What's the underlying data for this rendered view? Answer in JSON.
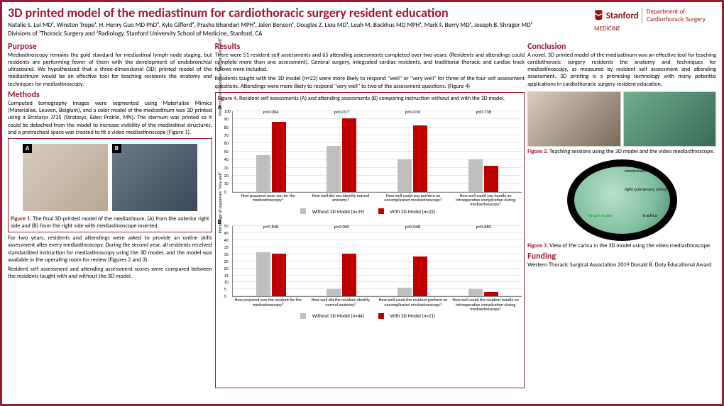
{
  "title": "3D printed model of the mediastinum for cardiothoracic surgery resident education",
  "authors": "Natalie S. Lui MD¹, Winston Trope¹, H. Henry Guo MD PhD², Kyle Gifford², Prasha Bhandari MPH¹, Jalen Benson¹,\nDouglas Z. Liou MD¹, Leah M. Backhus MD MPH¹, Mark F. Berry MD¹, Joseph B. Shrager MD¹",
  "affil": "Divisions of ¹Thoracic Surgery and ²Radiology, Stanford University School of Medicine, Stanford, CA",
  "logo": {
    "top": "Stanford",
    "mid": "MEDICINE",
    "dept": "Department of\nCardiothoracic Surgery"
  },
  "purpose": {
    "title": "Purpose",
    "text": "Mediastinoscopy remains the gold standard for mediastinal lymph node staging, but residents are performing fewer of them with the development of endobronchial ultrasound. We hypothesized that a three-dimensional (3D) printed model of the mediastinum would be an effective tool for teaching residents the anatomy and techniques for mediastinoscopy."
  },
  "methods": {
    "title": "Methods",
    "text1": "Computed tomography images were segmented using Materialise Mimics (Materialise, Leuven, Belgium), and a color model of the mediastinum was 3D printed using a Stratasys J735 (Stratasys, Eden Prairie, MN). The sternum was printed so it could be detached from the model to increase visibility of the mediastinal structures, and a pretracheal space was created to fit a video mediastinoscope (Figure 1).",
    "text2": "For two years, residents and attendings were asked to provide an online skills assessment after every mediastinoscopy. During the second year, all residents received standardized instruction for mediastinoscopy using the 3D model, and the model was available in the operating room for review (Figures 2 and 3).",
    "text3": "Resident self assessment and attending assessment scores were compared between the residents taught with and without the 3D model."
  },
  "fig1": {
    "label": "Figure 1.",
    "cap": "The final 3D-printed model of the mediastinum, (A) from the anterior right side and (B) from the right side with mediastinoscope inserted.",
    "a": "A",
    "b": "B"
  },
  "results": {
    "title": "Results",
    "text1": "There were 51 resident self assessments and 65 attending assessments completed over two years. (Residents and attendings could complete more than one assessment). General surgery, integrated cardiac residents, and traditional thoracic and cardiac track fellows were included.",
    "text2": "Residents taught with the 3D model (n=22) were more likely to respond \"well\" or \"very well\" for three of the four self assessment questions. Attendings were more likely to respond \"very well\" to two of the assessment questions. (Figure 4)"
  },
  "fig4": {
    "label": "Figure 4.",
    "cap": "Resident self assessments (A) and attending assessments (B) comparing instruction without and with the 3D model.",
    "panel_a": {
      "label": "A",
      "ylab": "Percentage of responses \"well\" or \"very well\"",
      "ymax": 100,
      "ytick": 10,
      "cats": [
        "How prepared were you for the mediastinoscopy?",
        "How well did you identify normal anatomy?",
        "How well could you perform an uncomplicated mediastinoscopy?",
        "How well could you handle an intraoperative complication during mediastinoscopy?"
      ],
      "grey": [
        45,
        56,
        40,
        40
      ],
      "red": [
        86,
        90,
        82,
        32
      ],
      "p": [
        "p=0.004",
        "p=0.017",
        "p=0.010",
        "p=0.738"
      ],
      "legend": [
        "Without 3D Model (n=29)",
        "With 3D Model (n=22)"
      ]
    },
    "panel_b": {
      "label": "B",
      "ylab": "Percentage of responses \"very well\"",
      "ymax": 50,
      "ytick": 5,
      "cats": [
        "How prepared was the resident for the mediastinoscopy?",
        "How well did the resident identify normal anatomy?",
        "How well could the resident perform an uncomplicated mediastinoscopy?",
        "How well could the resident handle an intraoperative complication during mediastinoscopy?"
      ],
      "grey": [
        31,
        5,
        6,
        5
      ],
      "red": [
        30,
        30,
        28,
        3
      ],
      "p": [
        "p=0.848",
        "p=0.005",
        "p=0.048",
        "p=0.680"
      ],
      "legend": [
        "Without 3D Model (n=44)",
        "With 3D Model (n=21)"
      ]
    }
  },
  "conclusion": {
    "title": "Conclusion",
    "text": "A novel, 3D printed model of the mediastinum was an effective tool for teaching cardiothoracic surgery residents the anatomy and techniques for mediastinoscopy, as measured by resident self assessment and attending assessment. 3D printing is a promising technology with many potential applications in cardiothoracic surgery resident education."
  },
  "fig2": {
    "label": "Figure 2.",
    "cap": "Teaching sessions using the 3D model and the video mediastinoscope."
  },
  "fig3": {
    "label": "Figure 3.",
    "cap": "View of the carina in the 3D model using the video mediastinoscope.",
    "annots": [
      "innominate artery",
      "right pulmonary artery",
      "lymph nodes",
      "trachea"
    ]
  },
  "funding": {
    "title": "Funding",
    "text": "Western Thoracic Surgical Association 2019 Donald B. Doty Educational Award"
  },
  "colors": {
    "accent": "#9b1b30",
    "bar_grey": "#bfbfbf",
    "bar_red": "#c00000"
  }
}
